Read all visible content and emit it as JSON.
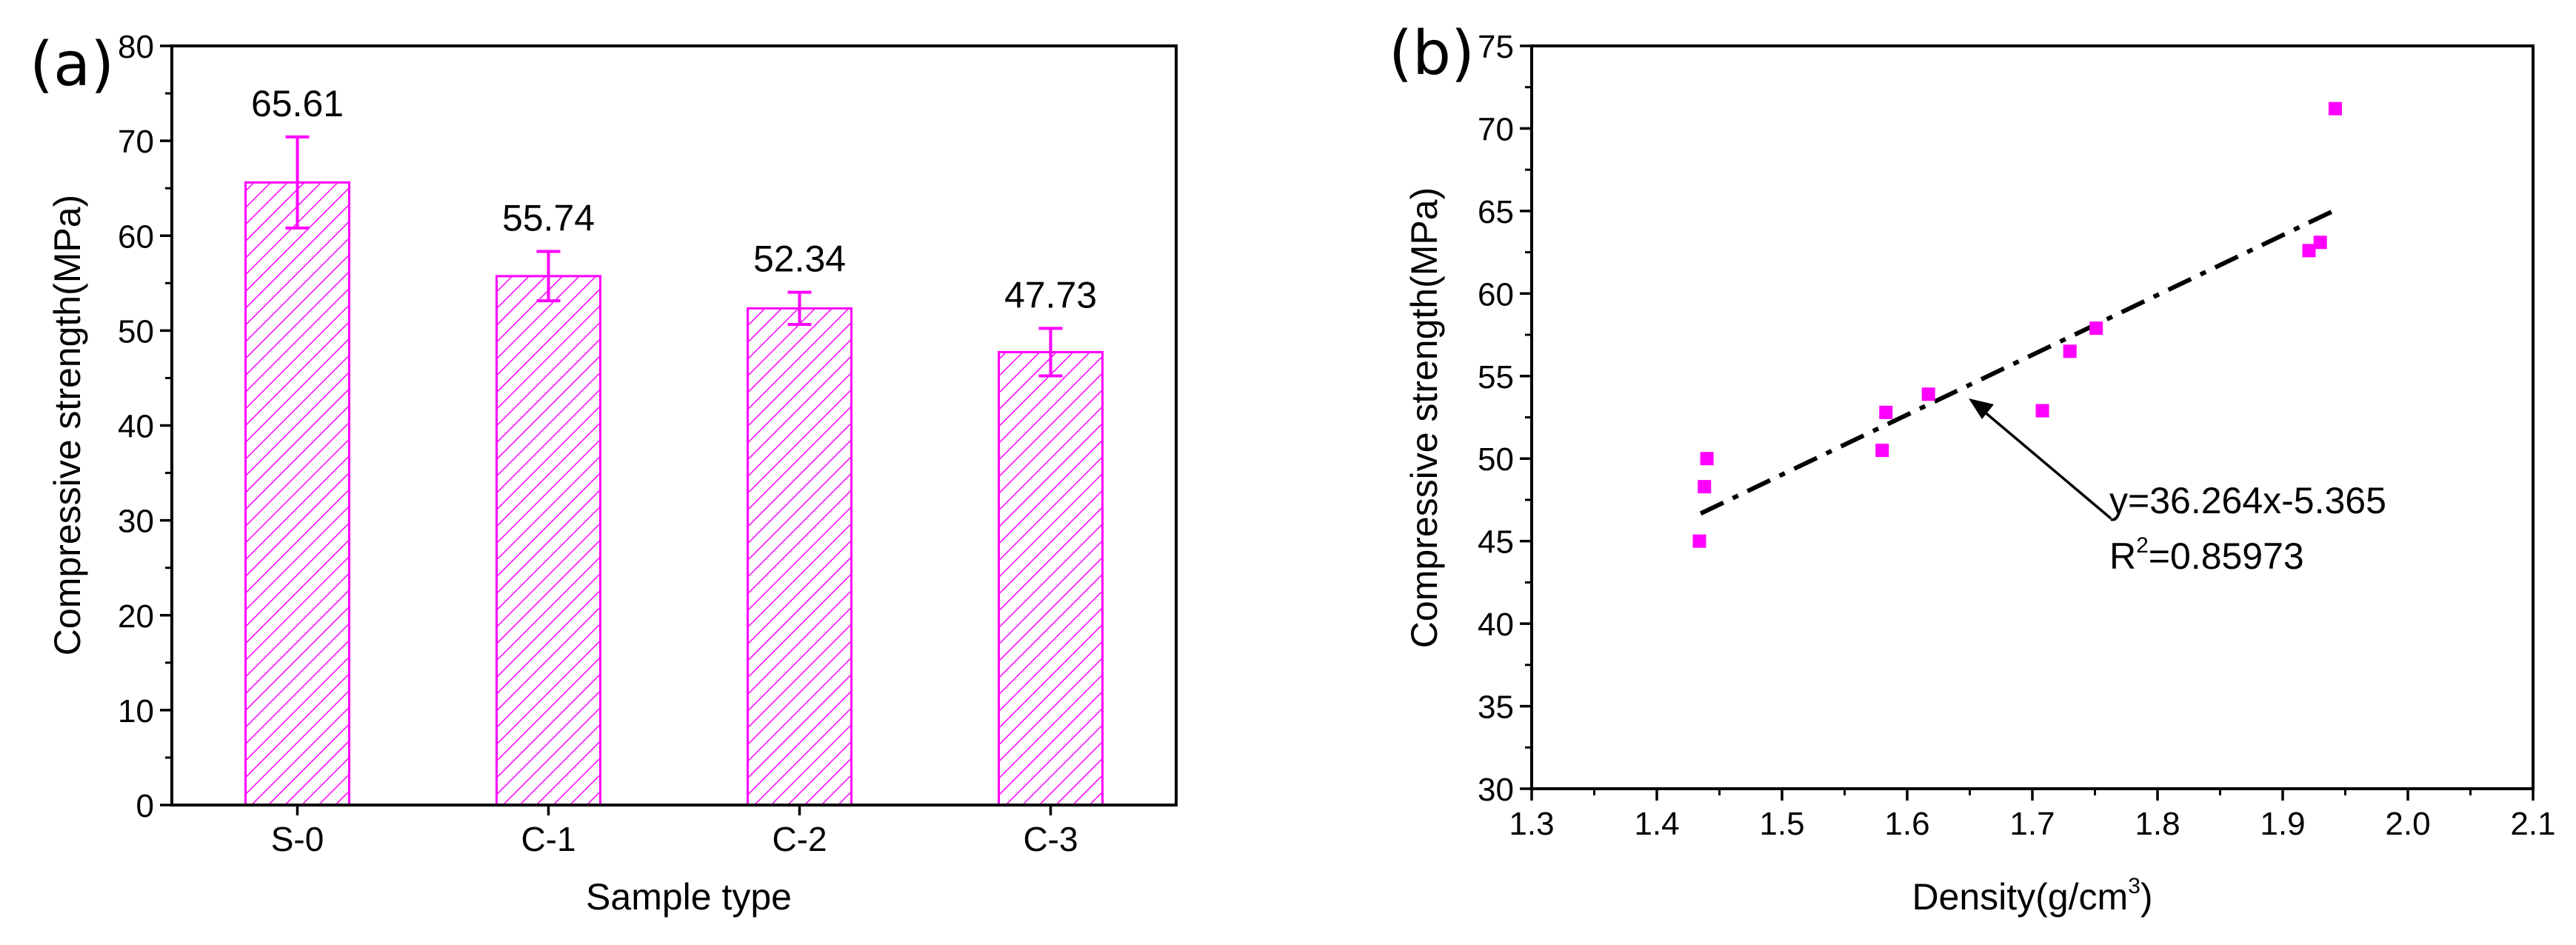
{
  "chart_data": [
    {
      "type": "bar",
      "panel_label": "(a)",
      "categories": [
        "S-0",
        "C-1",
        "C-2",
        "C-3"
      ],
      "values": [
        65.61,
        55.74,
        52.34,
        47.73
      ],
      "value_labels": [
        "65.61",
        "55.74",
        "52.34",
        "47.73"
      ],
      "error": [
        4.8,
        2.6,
        1.7,
        2.5
      ],
      "xlabel": "Sample type",
      "ylabel": "Compressive strength(MPa)",
      "ylim": [
        0,
        80
      ],
      "yticks": [
        "0",
        "10",
        "20",
        "30",
        "40",
        "50",
        "60",
        "70",
        "80"
      ],
      "fill": "hatched",
      "color": "#FF00FF"
    },
    {
      "type": "scatter",
      "panel_label": "(b)",
      "x": [
        1.434,
        1.438,
        1.44,
        1.58,
        1.583,
        1.617,
        1.708,
        1.73,
        1.751,
        1.921,
        1.93,
        1.942
      ],
      "y": [
        45.0,
        48.3,
        50.0,
        50.5,
        52.8,
        53.9,
        52.9,
        56.5,
        57.9,
        62.6,
        63.1,
        71.2
      ],
      "fit": {
        "slope": 36.264,
        "intercept": -5.365,
        "x_range": [
          1.435,
          1.942
        ]
      },
      "equation_text": "y=36.264x-5.365",
      "r2_base": "R",
      "r2_sup": "2",
      "r2_value": "=0.85973",
      "xlabel_base": "Density(g/cm",
      "xlabel_sup": "3",
      "xlabel_end": ")",
      "ylabel": "Compressive strength(MPa)",
      "xlim": [
        1.3,
        2.1
      ],
      "ylim": [
        30,
        75
      ],
      "xticks": [
        "1.3",
        "1.4",
        "1.5",
        "1.6",
        "1.7",
        "1.8",
        "1.9",
        "2.0",
        "2.1"
      ],
      "yticks": [
        "30",
        "35",
        "40",
        "45",
        "50",
        "55",
        "60",
        "65",
        "70",
        "75"
      ],
      "marker": "square",
      "color": "#FF00FF"
    }
  ]
}
